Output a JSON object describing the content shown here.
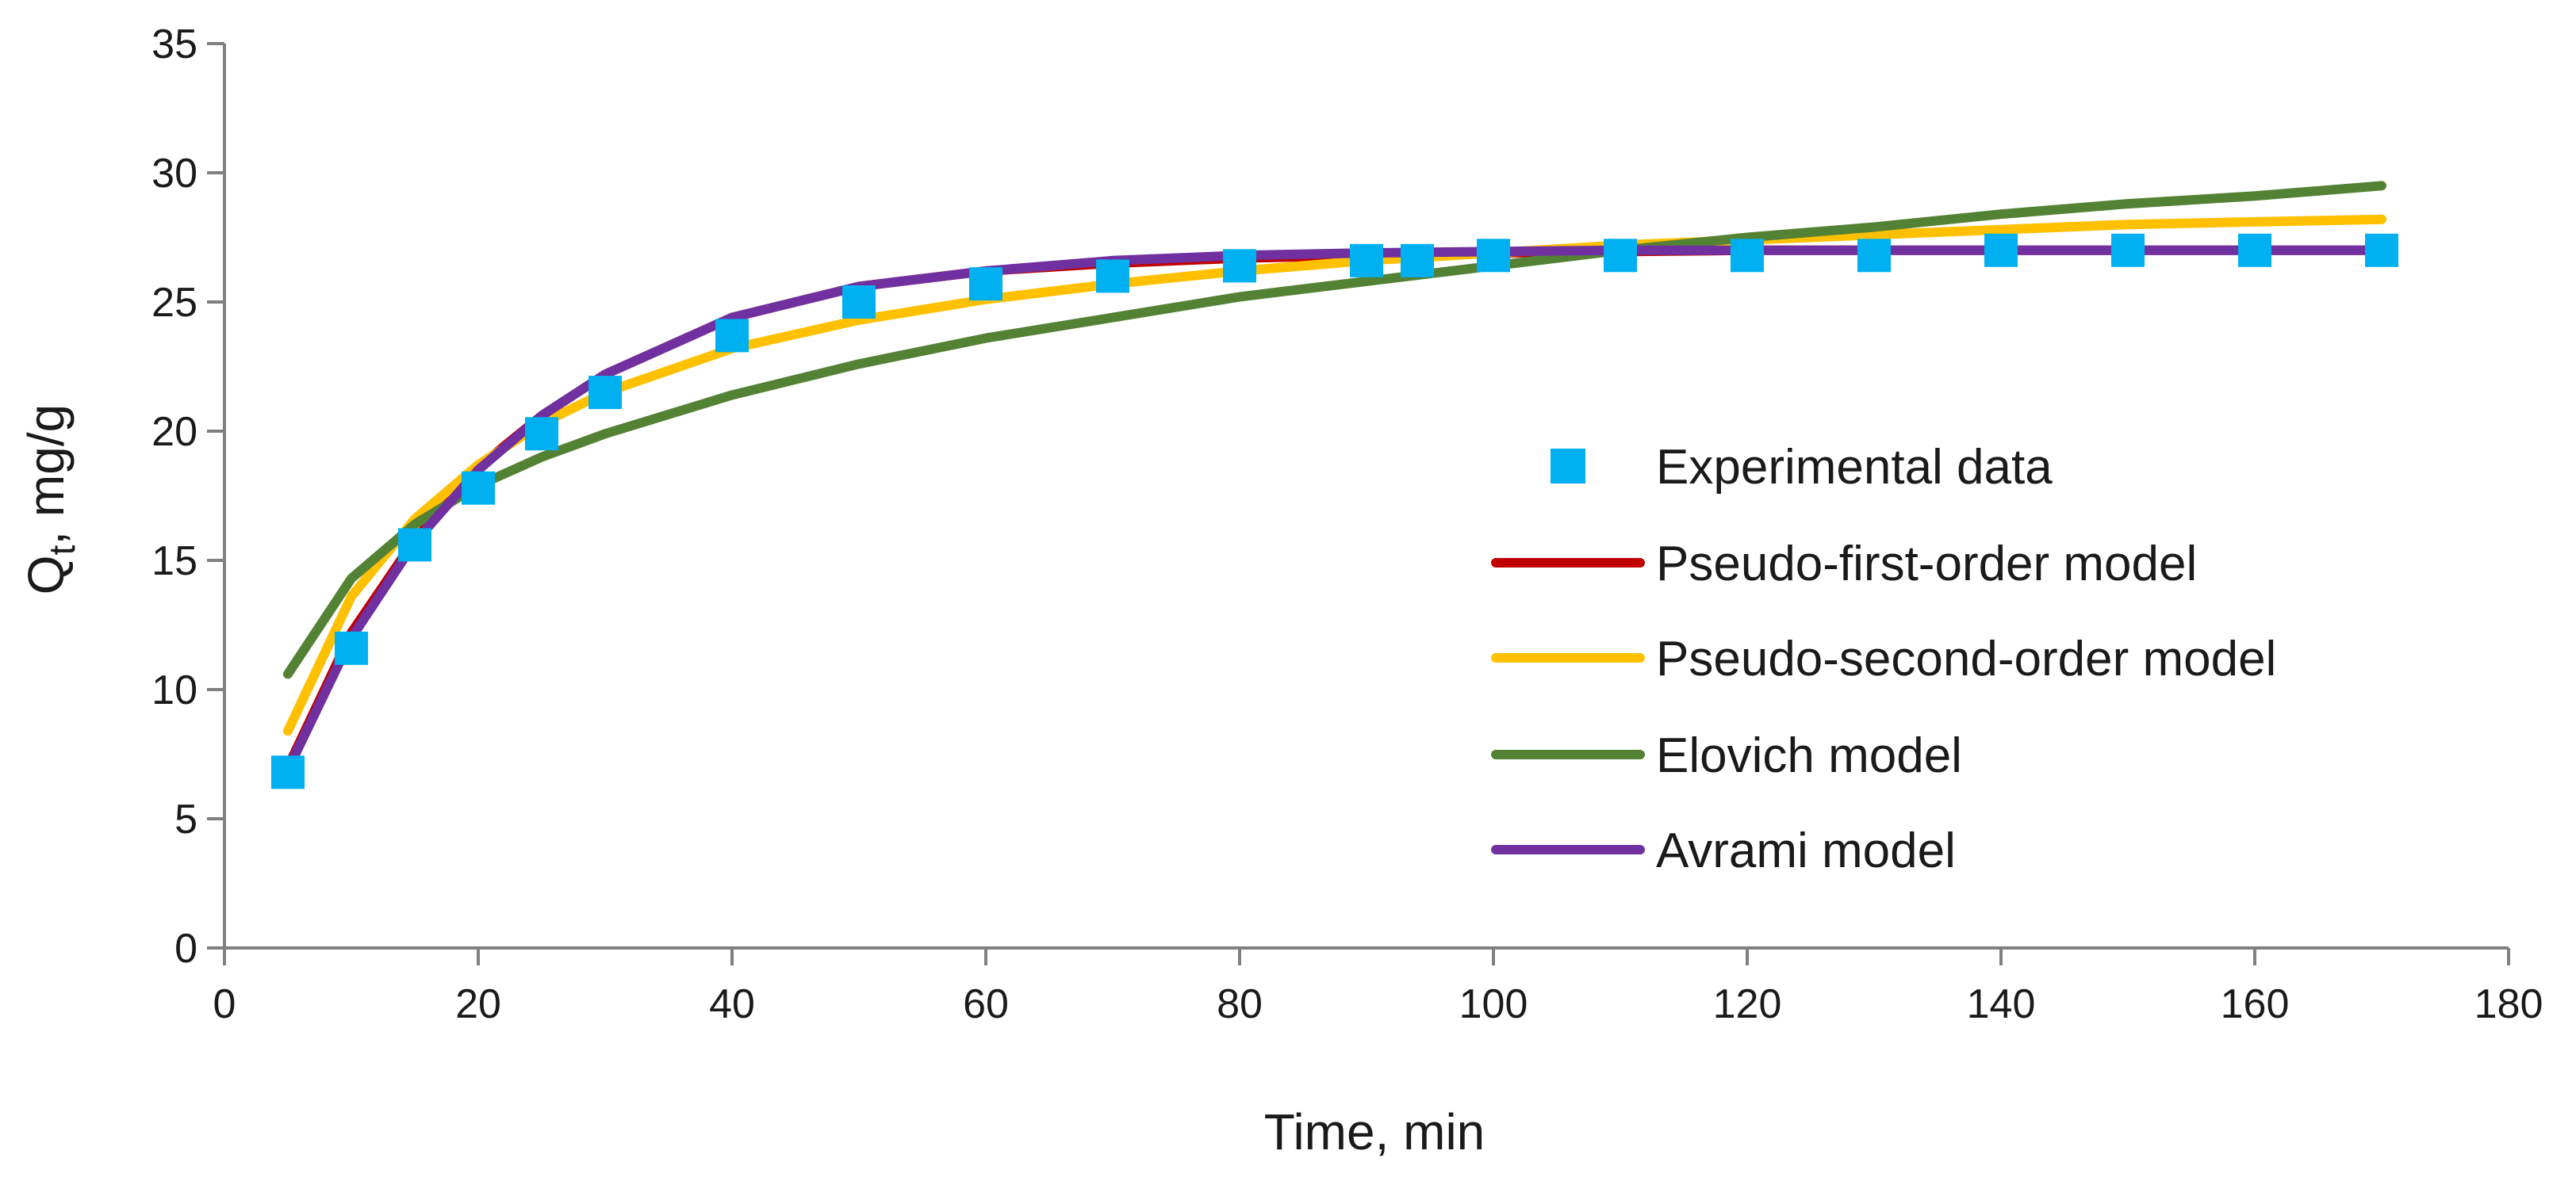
{
  "chart_data": {
    "type": "line",
    "title": "",
    "xlabel": "Time,  min",
    "ylabel": {
      "main": "Q",
      "subscript": "t",
      "rest": ", mg/g"
    },
    "xlim": [
      0,
      180
    ],
    "ylim": [
      0,
      35
    ],
    "xticks": [
      "0",
      "20",
      "40",
      "60",
      "80",
      "100",
      "120",
      "140",
      "160",
      "180"
    ],
    "yticks": [
      "0",
      "5",
      "10",
      "15",
      "20",
      "25",
      "30",
      "35"
    ],
    "grid": false,
    "legend_position": "center-right",
    "series": [
      {
        "name": "Experimental data",
        "kind": "scatter",
        "marker": "square",
        "color": "#00B0F0",
        "x": [
          5,
          10,
          15,
          20,
          25,
          30,
          40,
          50,
          60,
          70,
          80,
          90,
          94,
          100,
          110,
          120,
          130,
          140,
          150,
          160,
          170
        ],
        "y": [
          6.8,
          11.6,
          15.6,
          17.8,
          19.9,
          21.5,
          23.7,
          25.0,
          25.7,
          26.0,
          26.4,
          26.6,
          26.6,
          26.8,
          26.8,
          26.8,
          26.8,
          27.0,
          27.0,
          27.0,
          27.0
        ]
      },
      {
        "name": "Pseudo-first-order model",
        "kind": "line",
        "color": "#C00000",
        "x": [
          5,
          10,
          15,
          20,
          25,
          30,
          40,
          50,
          60,
          70,
          80,
          90,
          100,
          110,
          120,
          130,
          140,
          150,
          160,
          170
        ],
        "y": [
          7.0,
          12.2,
          15.8,
          18.6,
          20.6,
          22.2,
          24.4,
          25.6,
          26.2,
          26.5,
          26.7,
          26.8,
          26.9,
          26.95,
          27.0,
          27.0,
          27.0,
          27.0,
          27.0,
          27.0
        ]
      },
      {
        "name": "Pseudo-second-order model",
        "kind": "line",
        "color": "#FFC000",
        "x": [
          5,
          10,
          15,
          20,
          25,
          30,
          40,
          50,
          60,
          70,
          80,
          90,
          100,
          110,
          120,
          130,
          140,
          150,
          160,
          170
        ],
        "y": [
          8.4,
          13.6,
          16.6,
          18.7,
          20.3,
          21.5,
          23.2,
          24.3,
          25.1,
          25.7,
          26.2,
          26.6,
          26.9,
          27.2,
          27.4,
          27.6,
          27.8,
          28.0,
          28.1,
          28.2
        ]
      },
      {
        "name": "Elovich model",
        "kind": "line",
        "color": "#548235",
        "x": [
          5,
          10,
          15,
          20,
          25,
          30,
          40,
          50,
          60,
          70,
          80,
          90,
          100,
          110,
          120,
          130,
          140,
          150,
          160,
          170
        ],
        "y": [
          10.6,
          14.3,
          16.4,
          17.9,
          19.0,
          19.9,
          21.4,
          22.6,
          23.6,
          24.4,
          25.2,
          25.8,
          26.4,
          27.0,
          27.5,
          27.9,
          28.4,
          28.8,
          29.1,
          29.5
        ]
      },
      {
        "name": "Avrami model",
        "kind": "line",
        "color": "#7030A0",
        "x": [
          5,
          10,
          15,
          20,
          25,
          30,
          40,
          50,
          60,
          70,
          80,
          90,
          100,
          110,
          120,
          130,
          140,
          150,
          160,
          170
        ],
        "y": [
          6.9,
          12.0,
          15.7,
          18.5,
          20.6,
          22.2,
          24.4,
          25.6,
          26.2,
          26.6,
          26.8,
          26.9,
          26.95,
          27.0,
          27.0,
          27.0,
          27.0,
          27.0,
          27.0,
          27.0
        ]
      }
    ]
  }
}
